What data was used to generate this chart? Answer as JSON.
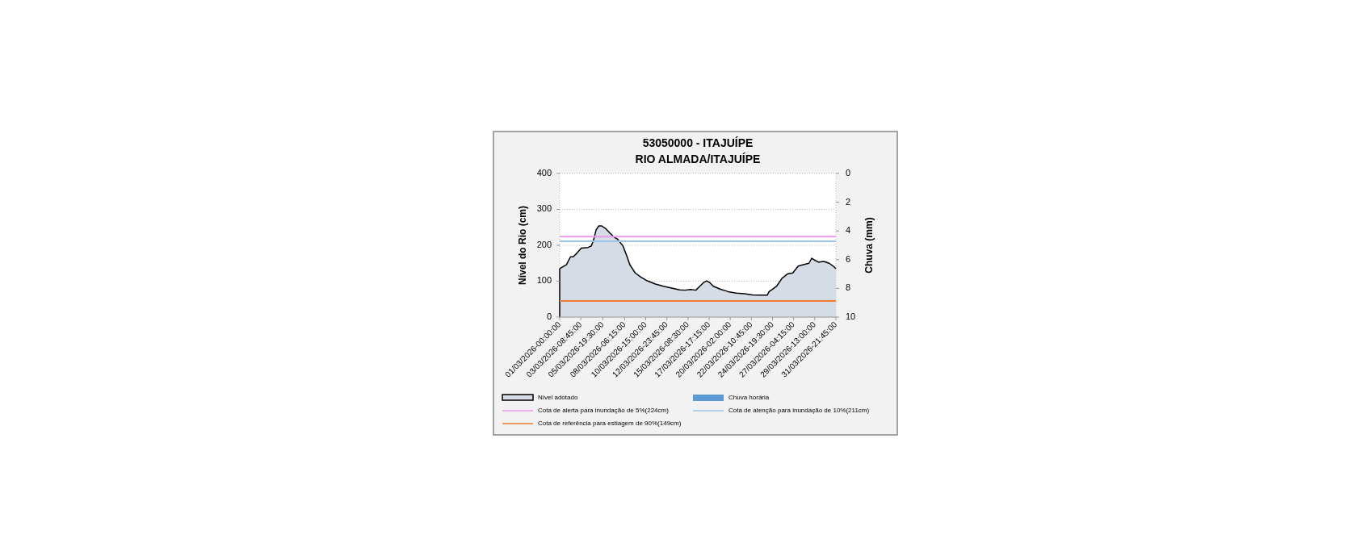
{
  "chart_data": {
    "type": "area",
    "title": "53050000 -  ITAJUÍPE",
    "subtitle": "RIO ALMADA/ITAJUÍPE",
    "ylabel": "Nível do Rio  (cm)",
    "y2label": "Chuva (mm)",
    "x": [
      "2026-03-01T00:00",
      "2026-03-01T18:00",
      "2026-03-02T05:00",
      "2026-03-02T12:15",
      "2026-03-02T23:00",
      "2026-03-03T10:00",
      "2026-03-04T04:00",
      "2026-03-04T12:45",
      "2026-03-04T18:30",
      "2026-03-05T01:45",
      "2026-03-05T09:00",
      "2026-03-05T16:15",
      "2026-03-06T03:00",
      "2026-03-06T14:00",
      "2026-03-07T00:45",
      "2026-03-07T11:30",
      "2026-03-08T02:00",
      "2026-03-08T13:00",
      "2026-03-08T20:15",
      "2026-03-09T10:45",
      "2026-03-10T01:00",
      "2026-03-10T19:15",
      "2026-03-11T17:00",
      "2026-03-12T14:30",
      "2026-03-13T12:15",
      "2026-03-14T10:00",
      "2026-03-15T00:30",
      "2026-03-15T15:00",
      "2026-03-16T05:30",
      "2026-03-16T16:15",
      "2026-03-17T03:15",
      "2026-03-17T10:30",
      "2026-03-17T17:45",
      "2026-03-18T04:30",
      "2026-03-18T22:30",
      "2026-03-19T20:15",
      "2026-03-20T18:00",
      "2026-03-21T15:45",
      "2026-03-22T13:30",
      "2026-03-23T11:15",
      "2026-03-24T05:15",
      "2026-03-24T10:15",
      "2026-03-24T19:45",
      "2026-03-25T06:30",
      "2026-03-25T21:00",
      "2026-03-26T11:30",
      "2026-03-27T02:00",
      "2026-03-27T16:30",
      "2026-03-28T10:30",
      "2026-03-28T21:30",
      "2026-03-29T04:45",
      "2026-03-29T12:00",
      "2026-03-29T22:45",
      "2026-03-30T13:15",
      "2026-03-31T03:45",
      "2026-03-31T14:30",
      "2026-03-31T21:45"
    ],
    "series": [
      {
        "name": "Nível adotado",
        "color": "#d6dce5",
        "values": [
          135,
          146,
          168,
          168,
          179,
          192,
          194,
          198,
          213,
          243,
          254,
          254,
          247,
          235,
          224,
          217,
          198,
          168,
          146,
          123,
          112,
          101,
          92,
          86,
          81,
          76,
          75,
          77,
          75,
          86,
          97,
          101,
          97,
          86,
          78,
          71,
          67,
          65,
          62,
          61,
          61,
          71,
          78,
          86,
          108,
          120,
          123,
          142,
          147,
          150,
          164,
          159,
          153,
          155,
          150,
          142,
          135
        ]
      },
      {
        "name": "Chuva horária",
        "type": "bar",
        "axis": "y2",
        "color": "#5b9bd5",
        "values": [
          0,
          0,
          0,
          0,
          0,
          0,
          0,
          0,
          0,
          0,
          0,
          0,
          0,
          0,
          0,
          0,
          0,
          0,
          0,
          0,
          0,
          0,
          0,
          0,
          0,
          0,
          0,
          0,
          0,
          0,
          0,
          0,
          0,
          0,
          0,
          0,
          0,
          0,
          0,
          0,
          0,
          0,
          0,
          0,
          0,
          0,
          0,
          0,
          0,
          0,
          0,
          0,
          0,
          0,
          0,
          0,
          0
        ]
      }
    ],
    "xlim": [
      "2026-03-01T00:00",
      "2026-03-31T21:45"
    ],
    "xticks": [
      {
        "value": "2026-03-01T00:00",
        "label": "01/03/2026-00:00:00"
      },
      {
        "value": "2026-03-03T08:45",
        "label": "03/03/2026-08:45:00"
      },
      {
        "value": "2026-03-05T19:30",
        "label": "05/03/2026-19:30:00"
      },
      {
        "value": "2026-03-08T06:15",
        "label": "08/03/2026-06:15:00"
      },
      {
        "value": "2026-03-10T15:00",
        "label": "10/03/2026-15:00:00"
      },
      {
        "value": "2026-03-12T23:45",
        "label": "12/03/2026-23:45:00"
      },
      {
        "value": "2026-03-15T08:30",
        "label": "15/03/2026-08:30:00"
      },
      {
        "value": "2026-03-17T17:15",
        "label": "17/03/2026-17:15:00"
      },
      {
        "value": "2026-03-20T02:00",
        "label": "20/03/2026-02:00:00"
      },
      {
        "value": "2026-03-22T10:45",
        "label": "22/03/2026-10:45:00"
      },
      {
        "value": "2026-03-24T19:30",
        "label": "24/03/2026-19:30:00"
      },
      {
        "value": "2026-03-27T04:15",
        "label": "27/03/2026-04:15:00"
      },
      {
        "value": "2026-03-29T13:00",
        "label": "29/03/2026-13:00:00"
      },
      {
        "value": "2026-03-31T21:45",
        "label": "31/03/2026-21:45:00"
      }
    ],
    "ylim": [
      0,
      400
    ],
    "yticks": [
      0,
      100,
      200,
      300,
      400
    ],
    "y2lim": [
      10,
      0
    ],
    "y2ticks": [
      0,
      2,
      4,
      6,
      8,
      10
    ],
    "ref_lines": [
      {
        "axis": "y",
        "value": 224,
        "label": "Cota de alerta para inundação de 5%(224cm)",
        "color": "#ee99ee"
      },
      {
        "axis": "y",
        "value": 211,
        "label": "Cota de atenção para inundação de 10%(211cm)",
        "color": "#9dc3e6"
      },
      {
        "axis": "y",
        "value": 45,
        "label": "Cota de referência para estiagem de 90%(149cm)",
        "color": "#ed7d31"
      }
    ],
    "grid": "y",
    "legend": "bottom"
  }
}
